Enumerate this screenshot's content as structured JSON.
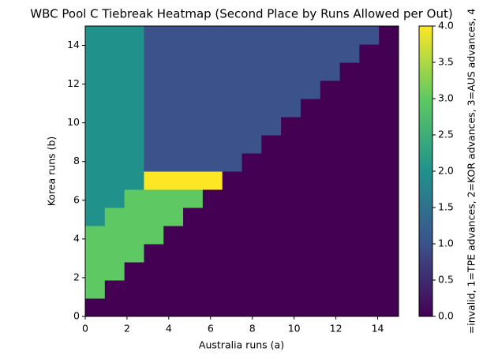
{
  "chart_data": {
    "type": "heatmap",
    "title": "WBC Pool C Tiebreak Heatmap (Second Place by Runs Allowed per Out)",
    "x_label": "Australia runs (a)",
    "y_label": "Korea runs (b)",
    "xlim": [
      0,
      15
    ],
    "ylim": [
      0,
      15
    ],
    "xticks": [
      0,
      2,
      4,
      6,
      8,
      10,
      12,
      14
    ],
    "yticks": [
      0,
      2,
      4,
      6,
      8,
      10,
      12,
      14
    ],
    "values": [
      [
        0,
        0,
        0,
        0,
        0,
        0,
        0,
        0,
        0,
        0,
        0,
        0,
        0,
        0,
        0,
        0
      ],
      [
        3,
        0,
        0,
        0,
        0,
        0,
        0,
        0,
        0,
        0,
        0,
        0,
        0,
        0,
        0,
        0
      ],
      [
        3,
        3,
        0,
        0,
        0,
        0,
        0,
        0,
        0,
        0,
        0,
        0,
        0,
        0,
        0,
        0
      ],
      [
        3,
        3,
        3,
        0,
        0,
        0,
        0,
        0,
        0,
        0,
        0,
        0,
        0,
        0,
        0,
        0
      ],
      [
        3,
        3,
        3,
        3,
        0,
        0,
        0,
        0,
        0,
        0,
        0,
        0,
        0,
        0,
        0,
        0
      ],
      [
        2,
        3,
        3,
        3,
        3,
        0,
        0,
        0,
        0,
        0,
        0,
        0,
        0,
        0,
        0,
        0
      ],
      [
        2,
        2,
        3,
        3,
        3,
        3,
        0,
        0,
        0,
        0,
        0,
        0,
        0,
        0,
        0,
        0
      ],
      [
        2,
        2,
        2,
        4,
        4,
        4,
        4,
        0,
        0,
        0,
        0,
        0,
        0,
        0,
        0,
        0
      ],
      [
        2,
        2,
        2,
        1,
        1,
        1,
        1,
        1,
        0,
        0,
        0,
        0,
        0,
        0,
        0,
        0
      ],
      [
        2,
        2,
        2,
        1,
        1,
        1,
        1,
        1,
        1,
        0,
        0,
        0,
        0,
        0,
        0,
        0
      ],
      [
        2,
        2,
        2,
        1,
        1,
        1,
        1,
        1,
        1,
        1,
        0,
        0,
        0,
        0,
        0,
        0
      ],
      [
        2,
        2,
        2,
        1,
        1,
        1,
        1,
        1,
        1,
        1,
        1,
        0,
        0,
        0,
        0,
        0
      ],
      [
        2,
        2,
        2,
        1,
        1,
        1,
        1,
        1,
        1,
        1,
        1,
        1,
        0,
        0,
        0,
        0
      ],
      [
        2,
        2,
        2,
        1,
        1,
        1,
        1,
        1,
        1,
        1,
        1,
        1,
        1,
        0,
        0,
        0
      ],
      [
        2,
        2,
        2,
        1,
        1,
        1,
        1,
        1,
        1,
        1,
        1,
        1,
        1,
        1,
        0,
        0
      ],
      [
        2,
        2,
        2,
        1,
        1,
        1,
        1,
        1,
        1,
        1,
        1,
        1,
        1,
        1,
        1,
        0
      ]
    ],
    "colormap": [
      "#440154",
      "#3b528b",
      "#21918c",
      "#5ec962",
      "#fde725"
    ],
    "clim": [
      0,
      4
    ],
    "colorbar_ticks": [
      {
        "value": 0,
        "label": "0.0"
      },
      {
        "value": 0.5,
        "label": "0.5"
      },
      {
        "value": 1,
        "label": "1.0"
      },
      {
        "value": 1.5,
        "label": "1.5"
      },
      {
        "value": 2,
        "label": "2.0"
      },
      {
        "value": 2.5,
        "label": "2.5"
      },
      {
        "value": 3,
        "label": "3.0"
      },
      {
        "value": 3.5,
        "label": "3.5"
      },
      {
        "value": 4,
        "label": "4.0"
      }
    ],
    "colorbar_label": "=invalid, 1=TPE advances, 2=KOR advances, 3=AUS advances, 4"
  }
}
